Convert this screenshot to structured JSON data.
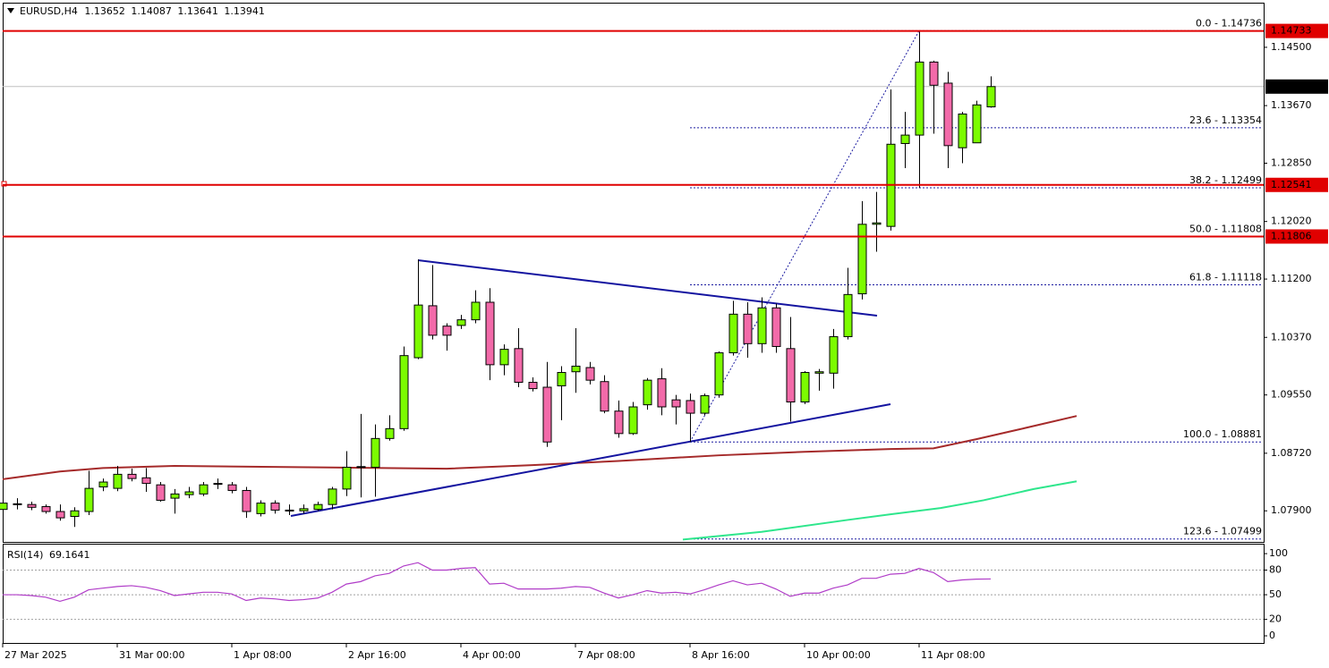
{
  "chart_data": [
    {
      "type": "candlestick",
      "symbol": "EURUSD,H4",
      "categories": [
        "27 Mar 2025",
        null,
        null,
        null,
        null,
        null,
        null,
        null,
        "31 Mar 00:00",
        null,
        null,
        null,
        null,
        null,
        null,
        null,
        "1 Apr 08:00",
        null,
        null,
        null,
        null,
        null,
        null,
        null,
        "2 Apr 16:00",
        null,
        null,
        null,
        null,
        null,
        null,
        null,
        "4 Apr 00:00",
        null,
        null,
        null,
        null,
        null,
        null,
        null,
        "7 Apr 08:00",
        null,
        null,
        null,
        null,
        null,
        null,
        null,
        "8 Apr 16:00",
        null,
        null,
        null,
        null,
        null,
        null,
        null,
        "10 Apr 00:00",
        null,
        null,
        null,
        null,
        null,
        null,
        null,
        "11 Apr 08:00",
        null,
        null,
        null,
        null,
        null,
        null,
        null,
        null,
        null,
        null,
        null,
        null,
        null,
        null,
        null,
        null,
        null,
        null,
        null,
        null,
        null,
        null,
        null
      ],
      "open": [
        1.0792,
        1.0799,
        1.0799,
        1.0796,
        1.0789,
        1.0782,
        1.0789,
        1.0824,
        1.0822,
        1.0842,
        1.0837,
        1.0827,
        1.0808,
        1.0813,
        1.0814,
        1.0828,
        1.0827,
        1.0819,
        1.0786,
        1.0801,
        1.079,
        1.079,
        1.0792,
        1.0799,
        1.0821,
        1.0853,
        1.0852,
        1.0893,
        1.0907,
        1.1008,
        1.1082,
        1.1053,
        1.1054,
        1.1062,
        1.1087,
        1.0998,
        1.1021,
        1.0973,
        1.0966,
        1.0968,
        1.0988,
        1.0994,
        1.0974,
        1.0932,
        1.09,
        1.0941,
        1.0978,
        1.0948,
        1.0947,
        1.0929,
        1.0955,
        1.1015,
        1.107,
        1.1028,
        1.1079,
        1.1021,
        1.0945,
        1.0986,
        1.0986,
        1.1038,
        1.1099,
        1.1198,
        1.1195,
        1.1313,
        1.1325,
        1.1429,
        1.1399,
        1.1307,
        1.1314,
        1.13652,
        null,
        null,
        null,
        null,
        null,
        null,
        null,
        null,
        null,
        null,
        null,
        null,
        null,
        null,
        null,
        null,
        null,
        null
      ],
      "high": [
        1.0821,
        1.0808,
        1.0803,
        1.0799,
        1.0799,
        1.0795,
        1.0847,
        1.0836,
        1.0854,
        1.085,
        1.0851,
        1.0831,
        1.0821,
        1.0824,
        1.0831,
        1.0836,
        1.0831,
        1.0824,
        1.0805,
        1.0805,
        1.0799,
        1.0799,
        1.0803,
        1.0824,
        1.0875,
        1.0928,
        1.0913,
        1.0926,
        1.1024,
        1.1148,
        1.114,
        1.1057,
        1.1069,
        1.1104,
        1.1107,
        1.1027,
        1.105,
        1.098,
        1.1002,
        1.0996,
        1.105,
        1.1002,
        1.0983,
        1.0947,
        1.0945,
        1.0979,
        1.0993,
        1.0955,
        1.0957,
        1.0957,
        1.1017,
        1.1089,
        1.1087,
        1.1094,
        1.1085,
        1.1066,
        1.0989,
        1.0992,
        1.1049,
        1.1136,
        1.1231,
        1.1244,
        1.139,
        1.1358,
        1.14736,
        1.1431,
        1.1415,
        1.1358,
        1.1374,
        1.14087,
        null,
        null,
        null,
        null,
        null,
        null,
        null,
        null,
        null,
        null,
        null,
        null,
        null,
        null,
        null,
        null,
        null,
        null
      ],
      "low": [
        1.078,
        1.0792,
        1.0791,
        1.0786,
        1.0776,
        1.0767,
        1.0784,
        1.0818,
        1.0818,
        1.0832,
        1.0817,
        1.0803,
        1.0786,
        1.0808,
        1.0811,
        1.0821,
        1.0815,
        1.078,
        1.0782,
        1.0786,
        1.0784,
        1.0786,
        1.079,
        1.0792,
        1.0811,
        1.0809,
        1.081,
        1.089,
        1.0904,
        1.1006,
        1.1034,
        1.1018,
        1.1049,
        1.1057,
        1.0976,
        1.0983,
        1.0966,
        1.096,
        1.0881,
        1.0919,
        1.0958,
        1.097,
        1.0929,
        1.0894,
        1.0898,
        1.0934,
        1.0926,
        1.0913,
        1.0888,
        1.0926,
        1.0951,
        1.1011,
        1.1008,
        1.1015,
        1.1015,
        1.0917,
        1.0942,
        1.0961,
        1.0964,
        1.1034,
        1.1091,
        1.1159,
        1.1189,
        1.1278,
        1.125,
        1.1327,
        1.1278,
        1.1285,
        1.1314,
        1.13641,
        null,
        null,
        null,
        null,
        null,
        null,
        null,
        null,
        null,
        null,
        null,
        null,
        null,
        null,
        null,
        null,
        null,
        null
      ],
      "close": [
        1.0801,
        1.08,
        1.0795,
        1.0789,
        1.078,
        1.079,
        1.0822,
        1.0831,
        1.0842,
        1.0836,
        1.0829,
        1.0805,
        1.0814,
        1.0817,
        1.0827,
        1.0829,
        1.0819,
        1.0789,
        1.0801,
        1.0791,
        1.0791,
        1.0793,
        1.0799,
        1.0821,
        1.0852,
        1.0852,
        1.0893,
        1.0907,
        1.1011,
        1.1083,
        1.104,
        1.104,
        1.1062,
        1.1087,
        1.0998,
        1.102,
        1.0973,
        1.0964,
        1.0888,
        1.0987,
        1.0996,
        1.0976,
        1.0932,
        1.09,
        1.0938,
        1.0976,
        1.0938,
        1.0938,
        1.0929,
        1.0954,
        1.1015,
        1.107,
        1.1028,
        1.1079,
        1.1024,
        1.0945,
        1.0987,
        1.0988,
        1.1038,
        1.1098,
        1.1198,
        1.12,
        1.1312,
        1.1325,
        1.1429,
        1.1396,
        1.131,
        1.1355,
        1.1368,
        1.13941,
        null,
        null,
        null,
        null,
        null,
        null,
        null,
        null,
        null,
        null,
        null,
        null,
        null,
        null,
        null,
        null,
        null,
        null
      ],
      "up_color": "#7cfc00",
      "down_color": "#f26aa9",
      "ylim": [
        1.0747,
        1.1511
      ],
      "yticks": [
        {
          "value": 1.145,
          "label": "1.14500"
        },
        {
          "value": 1.1367,
          "label": "1.13670"
        },
        {
          "value": 1.1285,
          "label": "1.12850"
        },
        {
          "value": 1.1202,
          "label": "1.12020"
        },
        {
          "value": 1.112,
          "label": "1.11200"
        },
        {
          "value": 1.1037,
          "label": "1.10370"
        },
        {
          "value": 1.0955,
          "label": "1.09550"
        },
        {
          "value": 1.0872,
          "label": "1.08720"
        },
        {
          "value": 1.079,
          "label": "1.07900"
        }
      ],
      "overlays": [
        {
          "color": "#a52a2a",
          "x": [
            0,
            4,
            7,
            12,
            31,
            37,
            43,
            50,
            56,
            62,
            65,
            68,
            71,
            75
          ],
          "values": [
            1.0835,
            1.0846,
            1.0851,
            1.0854,
            1.085,
            1.0855,
            1.0861,
            1.0869,
            1.0874,
            1.0878,
            1.0879,
            1.0892,
            1.0906,
            1.0925
          ]
        },
        {
          "color": "#2ee68c",
          "x": [
            47.5,
            53,
            59,
            62,
            65.5,
            68.5,
            72,
            75
          ],
          "values": [
            1.0749,
            1.076,
            1.0777,
            1.0785,
            1.0794,
            1.0805,
            1.0821,
            1.0832
          ]
        }
      ],
      "price_lines": [
        {
          "value": 1.14733,
          "color": "#e00000"
        },
        {
          "value": 1.12541,
          "color": "#e00000"
        },
        {
          "value": 1.11806,
          "color": "#e00000"
        }
      ],
      "fibonacci": {
        "color": "#1c1ca0",
        "levels": [
          {
            "value": 1.14736,
            "label": "0.0 - 1.14736"
          },
          {
            "value": 1.13354,
            "label": "23.6 - 1.13354"
          },
          {
            "value": 1.12499,
            "label": "38.2 - 1.12499"
          },
          {
            "value": 1.11808,
            "label": "50.0 - 1.11808"
          },
          {
            "value": 1.11118,
            "label": "61.8 - 1.11118"
          },
          {
            "value": 1.08881,
            "label": "100.0 - 1.08881"
          },
          {
            "value": 1.07499,
            "label": "123.6 - 1.07499"
          }
        ]
      }
    },
    {
      "type": "line",
      "series": [
        {
          "name": "RSI(14)",
          "color": "#b03cc8",
          "values": [
            50,
            50,
            49,
            47,
            42,
            47,
            56,
            58,
            60,
            61,
            59,
            55,
            49,
            51,
            53,
            53,
            51,
            43,
            46,
            45,
            43,
            44,
            46,
            53,
            63,
            66,
            73,
            76,
            85,
            89,
            80,
            80,
            82,
            83,
            63,
            64,
            57,
            57,
            57,
            58,
            60,
            59,
            52,
            46,
            50,
            55,
            52,
            53,
            51,
            56,
            62,
            67,
            62,
            64,
            57,
            48,
            52,
            52,
            58,
            62,
            70,
            70,
            75,
            76,
            82,
            77,
            66,
            68,
            69,
            69.1641,
            null,
            null,
            null,
            null,
            null,
            null,
            null,
            null,
            null,
            null,
            null,
            null,
            null,
            null,
            null,
            null,
            null,
            null
          ]
        }
      ],
      "ylim": [
        -6.5,
        111
      ],
      "yticks": [
        100,
        80,
        50,
        20,
        0
      ],
      "levels": [
        80,
        50,
        20
      ]
    }
  ]
}
